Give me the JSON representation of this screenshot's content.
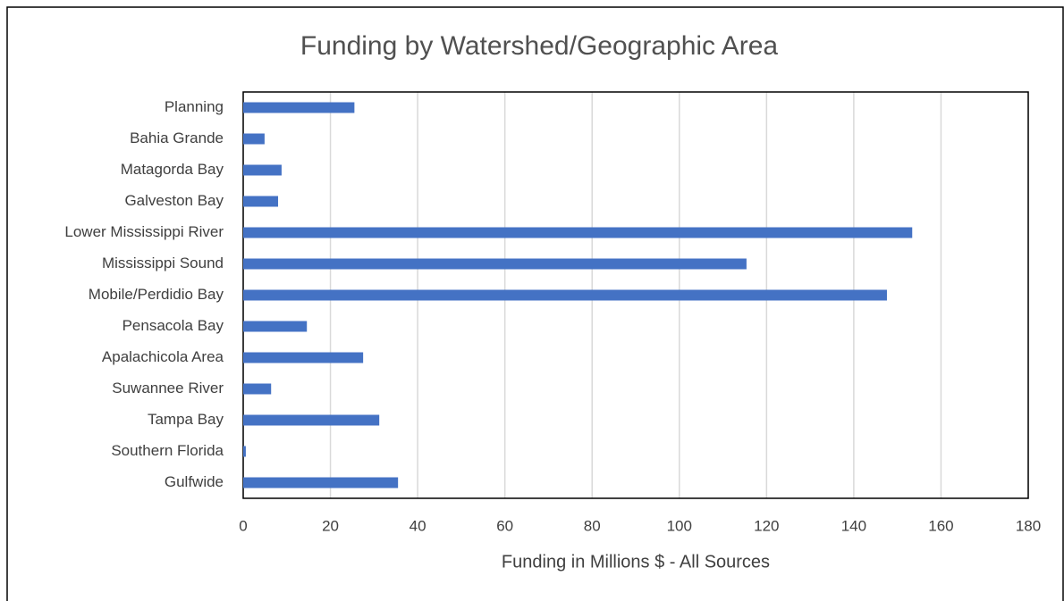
{
  "chart_data": {
    "type": "bar",
    "title": "Funding by Watershed/Geographic Area",
    "x_label": "Funding in Millions $ - All Sources",
    "categories": [
      "Planning",
      "Bahia Grande",
      "Matagorda Bay",
      "Galveston Bay",
      "Lower Mississippi River",
      "Mississippi Sound",
      "Mobile/Perdidio Bay",
      "Pensacola Bay",
      "Apalachicola Area",
      "Suwannee River",
      "Tampa Bay",
      "Southern Florida",
      "Gulfwide"
    ],
    "values": [
      25.5,
      4.9,
      8.8,
      8.0,
      153.4,
      115.4,
      147.6,
      14.6,
      27.5,
      6.4,
      31.2,
      0.6,
      35.5
    ],
    "color": "#4472c4",
    "xlim": [
      0,
      180
    ],
    "xticks": [
      0,
      20,
      40,
      60,
      80,
      100,
      120,
      140,
      160,
      180
    ],
    "grid": true
  }
}
